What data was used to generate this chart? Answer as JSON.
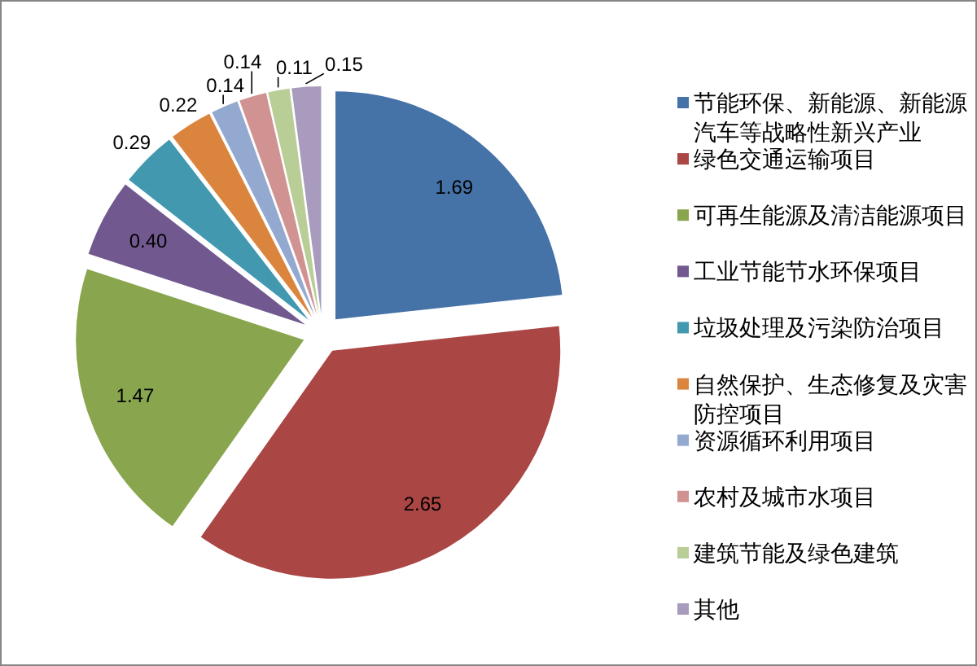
{
  "chart_data": {
    "type": "pie",
    "categories": [
      "节能环保、新能源、新能源汽车等战略性新兴产业",
      "绿色交通运输项目",
      "可再生能源及清洁能源项目",
      "工业节能节水环保项目",
      "垃圾处理及污染防治项目",
      "自然保护、生态修复及灾害防控项目",
      "资源循环利用项目",
      "农村及城市水项目",
      "建筑节能及绿色建筑",
      "其他"
    ],
    "values": [
      1.69,
      2.65,
      1.47,
      0.4,
      0.29,
      0.22,
      0.14,
      0.14,
      0.11,
      0.15
    ],
    "value_labels": [
      "1.69",
      "2.65",
      "1.47",
      "0.40",
      "0.29",
      "0.22",
      "0.14",
      "0.14",
      "0.11",
      "0.15"
    ],
    "colors": [
      "#4572a7",
      "#aa4643",
      "#89a54e",
      "#71588f",
      "#4198af",
      "#db843d",
      "#93a9cf",
      "#d19392",
      "#b9cd96",
      "#a99bbd"
    ],
    "legend": "right"
  }
}
